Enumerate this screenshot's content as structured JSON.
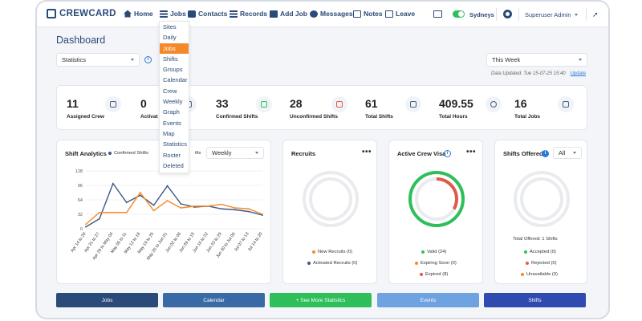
{
  "app": {
    "logo": "CREWCARD"
  },
  "nav": {
    "home": "Home",
    "jobs": "Jobs",
    "contacts": "Contacts",
    "records": "Records",
    "add_job": "Add Job",
    "messages": "Messages",
    "notes": "Notes",
    "leave": "Leave"
  },
  "topbar": {
    "location": "Sydneys",
    "user": "Superuser Admin"
  },
  "jobs_menu": [
    "Sites",
    "Daily",
    "Jobs",
    "Shifts",
    "Groups",
    "Calendar",
    "Crew",
    "Weekly",
    "Graph",
    "Events",
    "Map",
    "Statistics",
    "Roster",
    "Deleted"
  ],
  "jobs_menu_active": "Jobs",
  "page": {
    "title": "Dashboard"
  },
  "filters": {
    "view_select": "Statistics",
    "period_select": "This Week",
    "updated_text": "Data Updated: Tue 15-07-25 15:40",
    "update_link": "Update"
  },
  "stats": [
    {
      "value": "11",
      "label": "Assigned Crew",
      "icon": "crew-icon"
    },
    {
      "value": "0",
      "label": "Activat",
      "icon": "activated-icon"
    },
    {
      "value": "33",
      "label": "Confirmed Shifts",
      "icon": "confirmed-calendar-icon"
    },
    {
      "value": "28",
      "label": "Unconfirmed Shifts",
      "icon": "unconfirmed-calendar-icon"
    },
    {
      "value": "61",
      "label": "Total Shifts",
      "icon": "calendar-icon"
    },
    {
      "value": "409.55",
      "label": "Total Hours",
      "icon": "stopwatch-icon"
    },
    {
      "value": "16",
      "label": "Total Jobs",
      "icon": "jobs-icon"
    }
  ],
  "shift_analytics": {
    "title": "Shift Analytics",
    "legend_confirmed": "Confirmed Shifts",
    "legend_other_partial": "ifts",
    "range_select": "Weekly"
  },
  "recruits": {
    "title": "Recruits",
    "legend": [
      "New Recruits (0)",
      "Activated Recruits (0)"
    ]
  },
  "crew_visa": {
    "title": "Active Crew Visa",
    "legend": [
      "Valid (24)",
      "Expiring Soon (0)",
      "Expired (8)"
    ]
  },
  "shifts_offered": {
    "title": "Shifts Offered",
    "filter": "All",
    "total": "Total Offered: 1 Shifts",
    "legend": [
      "Accepted (0)",
      "Rejected (0)",
      "Unavailable (0)"
    ]
  },
  "buttons": [
    "Jobs",
    "Calendar",
    "+ See More Statistics",
    "Events",
    "Shifts"
  ],
  "colors": {
    "navy": "#2a4a79",
    "orange": "#f4892b",
    "series_dark": "#3d5a80",
    "green": "#2ebf5b",
    "red": "#e25a46",
    "blue": "#2a7bd8",
    "btn_jobs": "#2a4a79",
    "btn_calendar": "#3a6aa6",
    "btn_more": "#2ebf5b",
    "btn_events": "#6fa2e0",
    "btn_shifts": "#2f4bb0"
  },
  "chart_data": [
    {
      "type": "line",
      "title": "Shift Analytics",
      "categories": [
        "Apr 14 to 20",
        "Apr 21 to 27",
        "Apr 28 to May 04",
        "May 05 to 11",
        "May 12 to 18",
        "May 19 to 25",
        "May 26 to Jun 01",
        "Jun 02 to 08",
        "Jun 09 to 15",
        "Jun 16 to 22",
        "Jun 23 to 29",
        "Jun 30 to Jul 06",
        "Jul 07 to 13",
        "Jul 14 to 20"
      ],
      "series": [
        {
          "name": "Confirmed Shifts",
          "values": [
            4,
            22,
            100,
            58,
            74,
            52,
            95,
            55,
            48,
            50,
            44,
            42,
            38,
            30
          ]
        },
        {
          "values": [
            10,
            36,
            36,
            36,
            80,
            40,
            62,
            46,
            50,
            50,
            54,
            46,
            44,
            32
          ]
        }
      ],
      "yticks": [
        0,
        32,
        64,
        96,
        128
      ],
      "ylim": [
        0,
        128
      ],
      "grid": true
    }
  ]
}
